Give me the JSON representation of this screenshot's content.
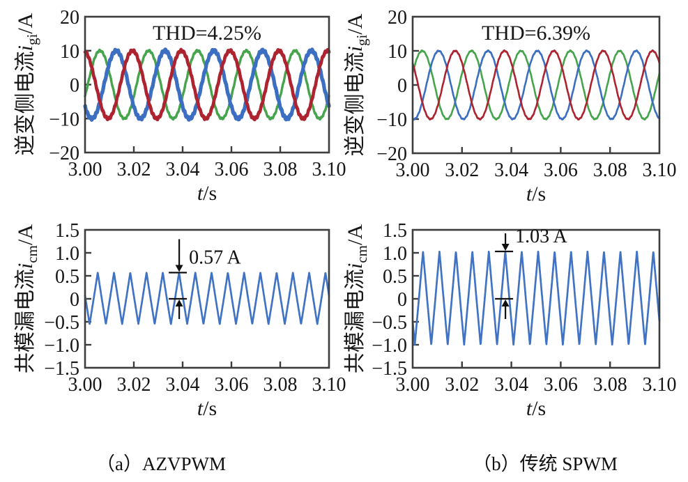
{
  "figure": {
    "captions": [
      {
        "label": "（a）AZVPWM"
      },
      {
        "label": "（b）传统 SPWM"
      }
    ]
  },
  "chart_data": [
    {
      "id": "inverter-side-current-azvpwm",
      "type": "line",
      "panel": "top-left",
      "annotation": "THD=4.25%",
      "xlabel": {
        "symbol": "t",
        "unit": "/s"
      },
      "ylabel": {
        "prefix": "逆变侧电流",
        "symbol": "i",
        "sub": "gi",
        "unit": "/A"
      },
      "xlim": [
        3.0,
        3.1
      ],
      "ylim": [
        -20,
        20
      ],
      "xticks": [
        3.0,
        3.02,
        3.04,
        3.06,
        3.08,
        3.1
      ],
      "xtick_labels": [
        "3.00",
        "3.02",
        "3.04",
        "3.06",
        "3.08",
        "3.10"
      ],
      "yticks": [
        20,
        10,
        0,
        -10,
        -20
      ],
      "ytick_labels": [
        "20",
        "10",
        "0",
        "−10",
        "−20"
      ],
      "series": [
        {
          "name": "phase-green",
          "waveform": "sine",
          "color": "#46a44c",
          "amplitude": 10,
          "frequency_hz": 50,
          "phase_deg": -110,
          "ripple": 0.22,
          "stroke_width": 3.4
        },
        {
          "name": "phase-blue",
          "waveform": "sine",
          "color": "#3c6fc1",
          "amplitude": 10,
          "frequency_hz": 50,
          "phase_deg": 130,
          "ripple": 0.34,
          "stroke_width": 5.2
        },
        {
          "name": "phase-red",
          "waveform": "sine",
          "color": "#ae2330",
          "amplitude": 10,
          "frequency_hz": 50,
          "phase_deg": 10,
          "ripple": 0.3,
          "stroke_width": 4.6
        }
      ]
    },
    {
      "id": "inverter-side-current-spwm",
      "type": "line",
      "panel": "top-right",
      "annotation": "THD=6.39%",
      "xlabel": {
        "symbol": "t",
        "unit": "/s"
      },
      "ylabel": {
        "prefix": "逆变侧电流",
        "symbol": "i",
        "sub": "gi",
        "unit": "/A"
      },
      "xlim": [
        3.0,
        3.1
      ],
      "ylim": [
        -20,
        20
      ],
      "xticks": [
        3.0,
        3.02,
        3.04,
        3.06,
        3.08,
        3.1
      ],
      "xtick_labels": [
        "3.00",
        "3.02",
        "3.04",
        "3.06",
        "3.08",
        "3.10"
      ],
      "yticks": [
        20,
        10,
        0,
        -10,
        -20
      ],
      "ytick_labels": [
        "20",
        "10",
        "0",
        "−10",
        "−20"
      ],
      "series": [
        {
          "name": "phase-green",
          "waveform": "sine",
          "color": "#46a44c",
          "amplitude": 10,
          "frequency_hz": 50,
          "phase_deg": -70,
          "ripple": 0.13,
          "stroke_width": 2.6
        },
        {
          "name": "phase-blue",
          "waveform": "sine",
          "color": "#3c6fc1",
          "amplitude": 10,
          "frequency_hz": 50,
          "phase_deg": 170,
          "ripple": 0.13,
          "stroke_width": 2.6
        },
        {
          "name": "phase-red",
          "waveform": "sine",
          "color": "#ae2330",
          "amplitude": 10,
          "frequency_hz": 50,
          "phase_deg": 50,
          "ripple": 0.13,
          "stroke_width": 2.6
        }
      ]
    },
    {
      "id": "common-mode-leakage-current-azvpwm",
      "type": "line",
      "panel": "bottom-left",
      "annotation": {
        "text": "0.57 A",
        "value": 0.57
      },
      "xlabel": {
        "symbol": "t",
        "unit": "/s"
      },
      "ylabel": {
        "prefix": "共模漏电流",
        "symbol": "i",
        "sub": "cm",
        "unit": "/A"
      },
      "xlim": [
        3.0,
        3.1
      ],
      "ylim": [
        -1.5,
        1.5
      ],
      "xticks": [
        3.0,
        3.02,
        3.04,
        3.06,
        3.08,
        3.1
      ],
      "xtick_labels": [
        "3.00",
        "3.02",
        "3.04",
        "3.06",
        "3.08",
        "3.10"
      ],
      "yticks": [
        1.5,
        1.0,
        0.5,
        0,
        -0.5,
        -1.0,
        -1.5
      ],
      "ytick_labels": [
        "1.5",
        "1.0",
        "0.5",
        "0",
        "−0.5",
        "−1.0",
        "−1.5"
      ],
      "series": [
        {
          "name": "leakage-current",
          "waveform": "triangle",
          "color": "#4173c5",
          "amplitude_pos": 0.57,
          "amplitude_neg": 0.55,
          "frequency_hz": 150,
          "phase_rad": 2.95,
          "stroke_width": 2.7
        }
      ]
    },
    {
      "id": "common-mode-leakage-current-spwm",
      "type": "line",
      "panel": "bottom-right",
      "annotation": {
        "text": "1.03 A",
        "value": 1.03
      },
      "xlabel": {
        "symbol": "t",
        "unit": "/s"
      },
      "ylabel": {
        "prefix": "共模漏电流",
        "symbol": "i",
        "sub": "cm",
        "unit": "/A"
      },
      "xlim": [
        3.0,
        3.1
      ],
      "ylim": [
        -1.5,
        1.5
      ],
      "xticks": [
        3.0,
        3.02,
        3.04,
        3.06,
        3.08,
        3.1
      ],
      "xtick_labels": [
        "3.00",
        "3.02",
        "3.04",
        "3.06",
        "3.08",
        "3.10"
      ],
      "yticks": [
        1.5,
        1.0,
        0.5,
        0,
        -0.5,
        -1.0,
        -1.5
      ],
      "ytick_labels": [
        "1.5",
        "1.0",
        "0.5",
        "0",
        "−0.5",
        "−1.0",
        "−1.5"
      ],
      "series": [
        {
          "name": "leakage-current",
          "waveform": "triangle",
          "color": "#4173c5",
          "amplitude_pos": 1.03,
          "amplitude_neg": 1.0,
          "frequency_hz": 150,
          "phase_rad": 3.9,
          "stroke_width": 2.7
        }
      ]
    }
  ]
}
